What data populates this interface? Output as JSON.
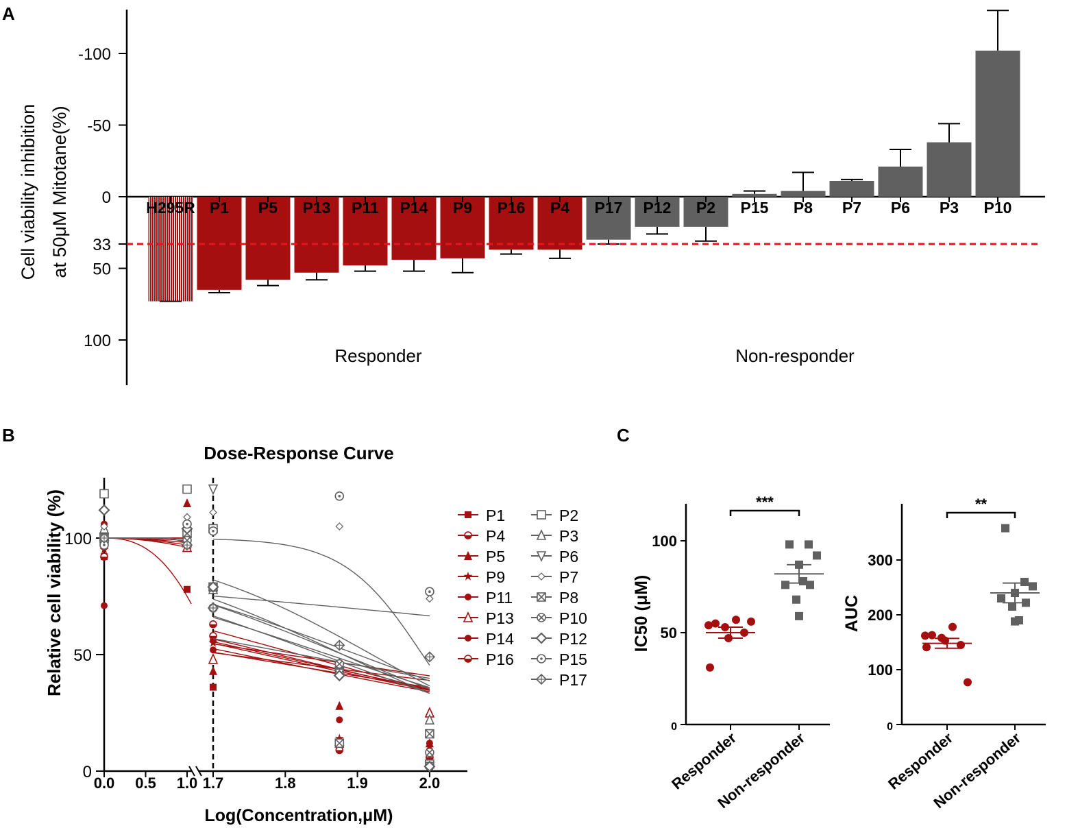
{
  "colors": {
    "responder": "#a50f0f",
    "nonresponder": "#606060",
    "threshold": "#e8141e",
    "axis": "#000000"
  },
  "chart_data": [
    {
      "panel": "A",
      "type": "bar",
      "ylabel_line1": "Cell viability inhibition",
      "ylabel_line2": "at 50μM Mitotane(%)",
      "yticks": [
        -100,
        -50,
        0,
        33,
        50,
        100
      ],
      "ytick_labels": [
        "-100",
        "-50",
        "0",
        "33",
        "50",
        "100"
      ],
      "ylim": [
        -130,
        130
      ],
      "threshold": 33,
      "group_labels": {
        "responder": "Responder",
        "nonresponder": "Non-responder"
      },
      "categories": [
        "H295R",
        "P1",
        "P5",
        "P13",
        "P11",
        "P14",
        "P9",
        "P16",
        "P4",
        "P17",
        "P12",
        "P2",
        "P15",
        "P8",
        "P7",
        "P6",
        "P3",
        "P10"
      ],
      "values": [
        73,
        65,
        58,
        53,
        48,
        44,
        43,
        37,
        37,
        30,
        21,
        21,
        -2,
        -4,
        -11,
        -21,
        -38,
        -102
      ],
      "errors": [
        0,
        2,
        4,
        5,
        4,
        8,
        10,
        3,
        6,
        3,
        5,
        10,
        2,
        13,
        1,
        12,
        13,
        28
      ],
      "groups": [
        "ref",
        "r",
        "r",
        "r",
        "r",
        "r",
        "r",
        "r",
        "r",
        "n",
        "n",
        "n",
        "n",
        "n",
        "n",
        "n",
        "n",
        "n"
      ]
    },
    {
      "panel": "B",
      "type": "line",
      "title": "Dose-Response Curve",
      "xlabel": "Log(Concentration,μM)",
      "ylabel": "Relative cell viability (%)",
      "xticks_left": [
        "0.0",
        "0.5",
        "1.0"
      ],
      "xticks_right": [
        "1.7",
        "1.8",
        "1.9",
        "2.0"
      ],
      "yticks": [
        "0",
        "50",
        "100"
      ],
      "ylim": [
        0,
        125
      ],
      "dashed_x": 1.7,
      "series": [
        {
          "name": "P1",
          "group": "r",
          "marker": "square",
          "ec50": 1.72,
          "hill": 0.9,
          "top": 100,
          "points": [
            [
              0,
              92
            ],
            [
              1,
              78
            ],
            [
              1.7,
              36
            ],
            [
              1.875,
              10
            ],
            [
              2,
              2
            ]
          ]
        },
        {
          "name": "P4",
          "group": "r",
          "marker": "halfcircle",
          "ec50": 1.78,
          "hill": 1.2,
          "top": 100,
          "points": [
            [
              0,
              100
            ],
            [
              1,
              100
            ],
            [
              1.7,
              58
            ],
            [
              1.875,
              12
            ],
            [
              2,
              3
            ]
          ]
        },
        {
          "name": "P5",
          "group": "r",
          "marker": "triangle-filled",
          "ec50": 1.82,
          "hill": 1.5,
          "top": 100,
          "points": [
            [
              0,
              103
            ],
            [
              1,
              115
            ],
            [
              1.7,
              43
            ],
            [
              1.875,
              28
            ],
            [
              2,
              12
            ]
          ]
        },
        {
          "name": "P9",
          "group": "r",
          "marker": "star",
          "ec50": 1.74,
          "hill": 1.1,
          "top": 100,
          "points": [
            [
              0,
              95
            ],
            [
              1,
              98
            ],
            [
              1.7,
              55
            ],
            [
              1.875,
              14
            ],
            [
              2,
              5
            ]
          ]
        },
        {
          "name": "P11",
          "group": "r",
          "marker": "circle-filled",
          "ec50": 1.72,
          "hill": 0.7,
          "top": 100,
          "points": [
            [
              0,
              71
            ],
            [
              1,
              99
            ],
            [
              1.7,
              56
            ],
            [
              1.875,
              22
            ],
            [
              2,
              12
            ]
          ]
        },
        {
          "name": "P13",
          "group": "r",
          "marker": "triangle-open",
          "ec50": 1.8,
          "hill": 0.8,
          "top": 100,
          "points": [
            [
              0,
              101
            ],
            [
              1,
              96
            ],
            [
              1.7,
              48
            ],
            [
              1.875,
              13
            ],
            [
              2,
              25
            ]
          ]
        },
        {
          "name": "P14",
          "group": "r",
          "marker": "circle-filled",
          "ec50": 1.77,
          "hill": 1.2,
          "top": 100,
          "points": [
            [
              0,
              106
            ],
            [
              1,
              100
            ],
            [
              1.7,
              52
            ],
            [
              1.875,
              13
            ],
            [
              2,
              9
            ]
          ]
        },
        {
          "name": "P16",
          "group": "r",
          "marker": "halfcircle",
          "ec50": 1.79,
          "hill": 1.3,
          "top": 100,
          "points": [
            [
              0,
              92
            ],
            [
              1,
              97
            ],
            [
              1.7,
              63
            ],
            [
              1.875,
              9
            ],
            [
              2,
              6
            ]
          ]
        },
        {
          "name": "P2",
          "group": "n",
          "marker": "square-open",
          "ec50": 1.82,
          "hill": 1.0,
          "top": 100,
          "points": [
            [
              0,
              119
            ],
            [
              1,
              121
            ],
            [
              1.7,
              104
            ],
            [
              1.875,
              43
            ],
            [
              2,
              3
            ]
          ]
        },
        {
          "name": "P3",
          "group": "n",
          "marker": "triangle-open",
          "ec50": 1.85,
          "hill": 2.0,
          "top": 100,
          "points": [
            [
              0,
              104
            ],
            [
              1,
              98
            ],
            [
              1.7,
              78
            ],
            [
              1.875,
              46
            ],
            [
              2,
              22
            ]
          ]
        },
        {
          "name": "P6",
          "group": "n",
          "marker": "triangle-down",
          "ec50": 1.88,
          "hill": 2.5,
          "top": 100,
          "points": [
            [
              0,
              100
            ],
            [
              1,
              101
            ],
            [
              1.7,
              121
            ],
            [
              1.875,
              42
            ],
            [
              2,
              2
            ]
          ]
        },
        {
          "name": "P7",
          "group": "n",
          "marker": "diamond-small",
          "ec50": 1.92,
          "hill": 3.0,
          "top": 100,
          "points": [
            [
              0,
              105
            ],
            [
              1,
              109
            ],
            [
              1.7,
              111
            ],
            [
              1.875,
              105
            ],
            [
              2,
              74
            ]
          ]
        },
        {
          "name": "P8",
          "group": "n",
          "marker": "square-x",
          "ec50": 1.9,
          "hill": 2.0,
          "top": 100,
          "points": [
            [
              0,
              100
            ],
            [
              1,
              102
            ],
            [
              1.7,
              79
            ],
            [
              1.875,
              12
            ],
            [
              2,
              16
            ]
          ]
        },
        {
          "name": "P10",
          "group": "n",
          "marker": "circle-x",
          "ec50": 1.88,
          "hill": 2.2,
          "top": 100,
          "points": [
            [
              0,
              98
            ],
            [
              1,
              99
            ],
            [
              1.7,
              70
            ],
            [
              1.875,
              46
            ],
            [
              2,
              8
            ]
          ]
        },
        {
          "name": "P12",
          "group": "n",
          "marker": "diamond",
          "ec50": 1.86,
          "hill": 1.8,
          "top": 100,
          "points": [
            [
              0,
              112
            ],
            [
              1,
              104
            ],
            [
              1.7,
              79
            ],
            [
              1.875,
              41
            ],
            [
              2,
              2
            ]
          ]
        },
        {
          "name": "P15",
          "group": "n",
          "marker": "circle-dot",
          "ec50": 1.99,
          "hill": 8.0,
          "top": 100,
          "points": [
            [
              0,
              97
            ],
            [
              1,
              106
            ],
            [
              1.7,
              103
            ],
            [
              1.875,
              118
            ],
            [
              2,
              77
            ]
          ]
        },
        {
          "name": "P17",
          "group": "n",
          "marker": "diamond-plus",
          "ec50": 2.5,
          "hill": 0.6,
          "top": 100,
          "points": [
            [
              0,
              100
            ],
            [
              1,
              97
            ],
            [
              1.7,
              70
            ],
            [
              1.875,
              54
            ],
            [
              2,
              49
            ]
          ]
        }
      ]
    },
    {
      "panel": "C-left",
      "type": "scatter",
      "ylabel": "IC50 (μM)",
      "yticks": [
        "0",
        "50",
        "100"
      ],
      "ylim": [
        0,
        120
      ],
      "categories": [
        "Responder",
        "Non-responder"
      ],
      "significance": "***",
      "series": [
        {
          "name": "Responder",
          "values": [
            55,
            53,
            57,
            47,
            54,
            50,
            31,
            56
          ],
          "mean": 50,
          "sem": 3
        },
        {
          "name": "Non-responder",
          "values": [
            98,
            98,
            92,
            87,
            76,
            76,
            68,
            59,
            78
          ],
          "mean": 82,
          "sem": 5
        }
      ]
    },
    {
      "panel": "C-right",
      "type": "scatter",
      "ylabel": "AUC",
      "yticks": [
        "0",
        "100",
        "200",
        "300"
      ],
      "ylim": [
        0,
        400
      ],
      "categories": [
        "Responder",
        "Non-responder"
      ],
      "significance": "**",
      "series": [
        {
          "name": "Responder",
          "values": [
            163,
            158,
            178,
            153,
            162,
            145,
            141,
            77
          ],
          "mean": 148,
          "sem": 9
        },
        {
          "name": "Non-responder",
          "values": [
            358,
            260,
            252,
            240,
            230,
            222,
            215,
            188,
            190
          ],
          "mean": 240,
          "sem": 18
        }
      ]
    }
  ],
  "panel_letters": {
    "a": "A",
    "b": "B",
    "c": "C"
  }
}
